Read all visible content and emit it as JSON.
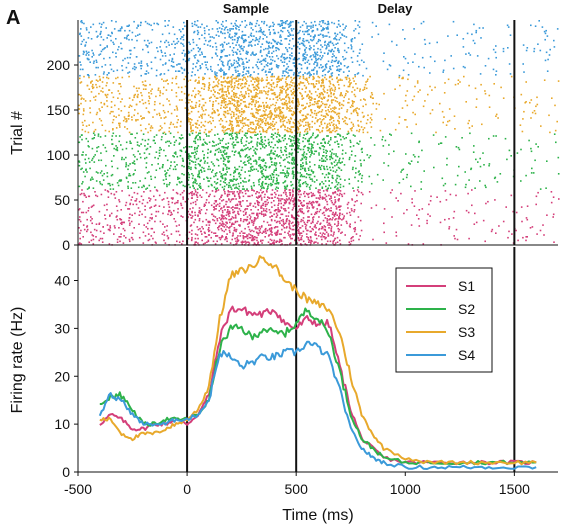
{
  "panel_label": "A",
  "epoch_labels": {
    "sample": "Sample",
    "delay": "Delay"
  },
  "colors": {
    "S1": "#d43f7a",
    "S2": "#2db24a",
    "S3": "#e8a92c",
    "S4": "#3b9ad9",
    "axis": "#111111"
  },
  "chart_data": [
    {
      "type": "scatter",
      "subtype": "raster",
      "ylabel": "Trial #",
      "xlim": [
        -500,
        1700
      ],
      "ylim": [
        0,
        250
      ],
      "yticks": [
        "0",
        "50",
        "100",
        "150",
        "200"
      ],
      "vlines_ms": [
        0,
        500,
        1500
      ],
      "series": [
        {
          "trials": [
            0,
            62
          ],
          "rate_segments": [
            [
              -500,
              0,
              10
            ],
            [
              0,
              150,
              22
            ],
            [
              150,
              500,
              35
            ],
            [
              500,
              700,
              32
            ],
            [
              700,
              800,
              15
            ],
            [
              800,
              1700,
              2
            ]
          ]
        },
        {
          "trials": [
            62,
            125
          ],
          "rate_segments": [
            [
              -500,
              0,
              12
            ],
            [
              0,
              150,
              20
            ],
            [
              150,
              500,
              30
            ],
            [
              500,
              700,
              30
            ],
            [
              700,
              800,
              15
            ],
            [
              800,
              1700,
              2
            ]
          ]
        },
        {
          "trials": [
            125,
            188
          ],
          "rate_segments": [
            [
              -500,
              0,
              12
            ],
            [
              0,
              150,
              22
            ],
            [
              150,
              500,
              40
            ],
            [
              500,
              700,
              36
            ],
            [
              700,
              850,
              18
            ],
            [
              850,
              1700,
              2
            ]
          ]
        },
        {
          "trials": [
            188,
            250
          ],
          "rate_segments": [
            [
              -500,
              0,
              12
            ],
            [
              0,
              150,
              18
            ],
            [
              150,
              500,
              25
            ],
            [
              500,
              700,
              25
            ],
            [
              700,
              800,
              12
            ],
            [
              800,
              1700,
              2
            ]
          ]
        }
      ]
    },
    {
      "type": "line",
      "xlabel": "Time (ms)",
      "ylabel": "Firing rate (Hz)",
      "xlim": [
        -500,
        1700
      ],
      "ylim": [
        0,
        47
      ],
      "xticks": [
        "-500",
        "0",
        "500",
        "1000",
        "1500"
      ],
      "yticks": [
        "0",
        "10",
        "20",
        "30",
        "40"
      ],
      "vlines_ms": [
        0,
        500,
        1500
      ],
      "legend": {
        "position": "top-right",
        "entries": [
          "S1",
          "S2",
          "S3",
          "S4"
        ]
      },
      "series": [
        {
          "name": "S1",
          "x": [
            -400,
            -350,
            -300,
            -250,
            -200,
            -150,
            -100,
            -50,
            0,
            50,
            100,
            150,
            200,
            250,
            300,
            350,
            400,
            450,
            500,
            550,
            600,
            650,
            700,
            750,
            800,
            850,
            900,
            1000,
            1100,
            1200,
            1300,
            1400,
            1500,
            1600
          ],
          "y": [
            10,
            12,
            11,
            9,
            9,
            10,
            10,
            11,
            10,
            12,
            16,
            28,
            34,
            34,
            33,
            33,
            34,
            31,
            30,
            32,
            31,
            31,
            22,
            13,
            7,
            5,
            3,
            2,
            2,
            2,
            2,
            2,
            2,
            2
          ]
        },
        {
          "name": "S2",
          "x": [
            -400,
            -350,
            -300,
            -250,
            -200,
            -150,
            -100,
            -50,
            0,
            50,
            100,
            150,
            200,
            250,
            300,
            350,
            400,
            450,
            500,
            550,
            600,
            650,
            700,
            750,
            800,
            850,
            900,
            1000,
            1100,
            1200,
            1300,
            1400,
            1500,
            1600
          ],
          "y": [
            14,
            16,
            16,
            13,
            10,
            10,
            11,
            11,
            11,
            12,
            15,
            26,
            30,
            30,
            28,
            30,
            29,
            29,
            31,
            34,
            32,
            29,
            21,
            12,
            7,
            5,
            3,
            2,
            2,
            2,
            2,
            2,
            2,
            2
          ]
        },
        {
          "name": "S3",
          "x": [
            -400,
            -350,
            -300,
            -250,
            -200,
            -150,
            -100,
            -50,
            0,
            50,
            100,
            150,
            200,
            250,
            300,
            350,
            400,
            450,
            500,
            550,
            600,
            650,
            700,
            750,
            800,
            850,
            900,
            1000,
            1100,
            1200,
            1300,
            1400,
            1500,
            1600
          ],
          "y": [
            11,
            11,
            8,
            7,
            8,
            8,
            9,
            10,
            11,
            13,
            18,
            32,
            41,
            42,
            43,
            45,
            43,
            40,
            38,
            36,
            35,
            34,
            29,
            20,
            12,
            8,
            5,
            3,
            2,
            2,
            2,
            2,
            2,
            2
          ]
        },
        {
          "name": "S4",
          "x": [
            -400,
            -350,
            -300,
            -250,
            -200,
            -150,
            -100,
            -50,
            0,
            50,
            100,
            150,
            200,
            250,
            300,
            350,
            400,
            450,
            500,
            550,
            600,
            650,
            700,
            750,
            800,
            850,
            900,
            1000,
            1100,
            1200,
            1300,
            1400,
            1500,
            1600
          ],
          "y": [
            12,
            16,
            15,
            12,
            10,
            10,
            10,
            11,
            11,
            12,
            15,
            25,
            24,
            22,
            23,
            24,
            24,
            25,
            25,
            27,
            26,
            24,
            17,
            9,
            5,
            3,
            2,
            1,
            1,
            1,
            1,
            1,
            1,
            1
          ]
        }
      ]
    }
  ]
}
